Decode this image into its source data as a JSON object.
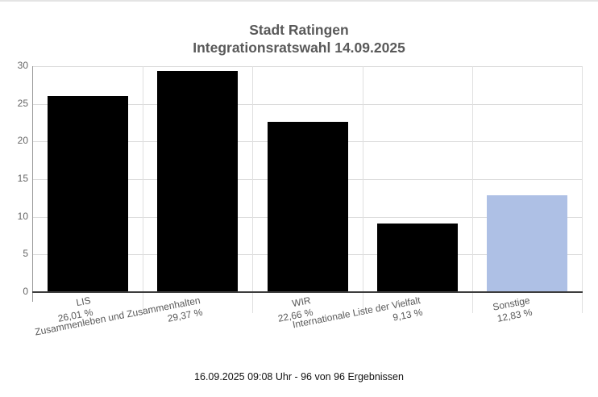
{
  "page": {
    "title_line1": "Stadt Ratingen",
    "title_line2": "Integrationsratswahl 14.09.2025",
    "footer": "16.09.2025 09:08 Uhr - 96 von 96 Ergebnissen"
  },
  "chart_data": {
    "type": "bar",
    "title": "Stadt Ratingen",
    "subtitle": "Integrationsratswahl 14.09.2025",
    "categories": [
      "LIS",
      "Zusammenleben und Zusammenhalten",
      "WIR",
      "Internationale Liste der Vielfalt",
      "Sonstige"
    ],
    "values": [
      26.01,
      29.37,
      22.66,
      9.13,
      12.83
    ],
    "value_labels": [
      "26,01 %",
      "29,37 %",
      "22,66 %",
      "9,13 %",
      "12,83 %"
    ],
    "bar_colors": [
      "#000000",
      "#000000",
      "#000000",
      "#000000",
      "#aec0e5"
    ],
    "xlabel": "",
    "ylabel": "",
    "ylim": [
      0,
      30
    ],
    "yticks": [
      0,
      5,
      10,
      15,
      20,
      25,
      30
    ],
    "grid": true,
    "legend_position": "none",
    "caption": "16.09.2025 09:08 Uhr - 96 von 96 Ergebnissen"
  },
  "colors": {
    "default_bar": "#000000",
    "highlight_bar": "#aec0e5",
    "grid_horizontal": "#dcdcdc",
    "grid_vertical": "#e0e0e0",
    "axis": "#999999",
    "baseline": "#3d3d3d",
    "label_text": "#595959",
    "tick_text": "#666666",
    "title_text": "#595959",
    "footer_text": "#111111"
  }
}
